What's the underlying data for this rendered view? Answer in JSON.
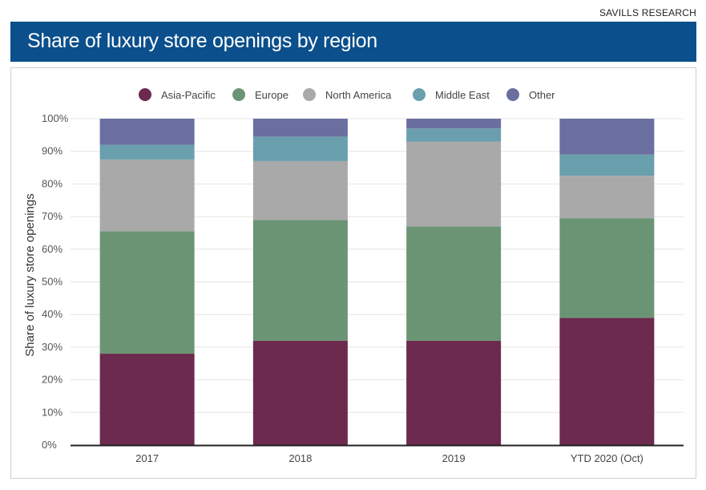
{
  "header": {
    "source": "SAVILLS RESEARCH",
    "title": "Share of luxury store openings by region"
  },
  "chart_data": {
    "type": "bar",
    "stacked": true,
    "title": "Share of luxury store openings by region",
    "xlabel": "",
    "ylabel": "Share of luxury store openings",
    "ylim": [
      0,
      100
    ],
    "yticks": [
      "0%",
      "10%",
      "20%",
      "30%",
      "40%",
      "50%",
      "60%",
      "70%",
      "80%",
      "90%",
      "100%"
    ],
    "categories": [
      "2017",
      "2018",
      "2019",
      "YTD 2020 (Oct)"
    ],
    "series": [
      {
        "name": "Asia-Pacific",
        "color": "#6b2a4e",
        "values": [
          28,
          32,
          32,
          39
        ]
      },
      {
        "name": "Europe",
        "color": "#6b9474",
        "values": [
          37.5,
          37,
          35,
          30.5
        ]
      },
      {
        "name": "North America",
        "color": "#a9a9a9",
        "values": [
          22,
          18,
          26,
          13
        ]
      },
      {
        "name": "Middle East",
        "color": "#6a9fae",
        "values": [
          4.5,
          7.5,
          4,
          6.5
        ]
      },
      {
        "name": "Other",
        "color": "#6b6f9f",
        "values": [
          8,
          5.5,
          3,
          11
        ]
      }
    ],
    "legend_position": "top",
    "grid": true
  }
}
